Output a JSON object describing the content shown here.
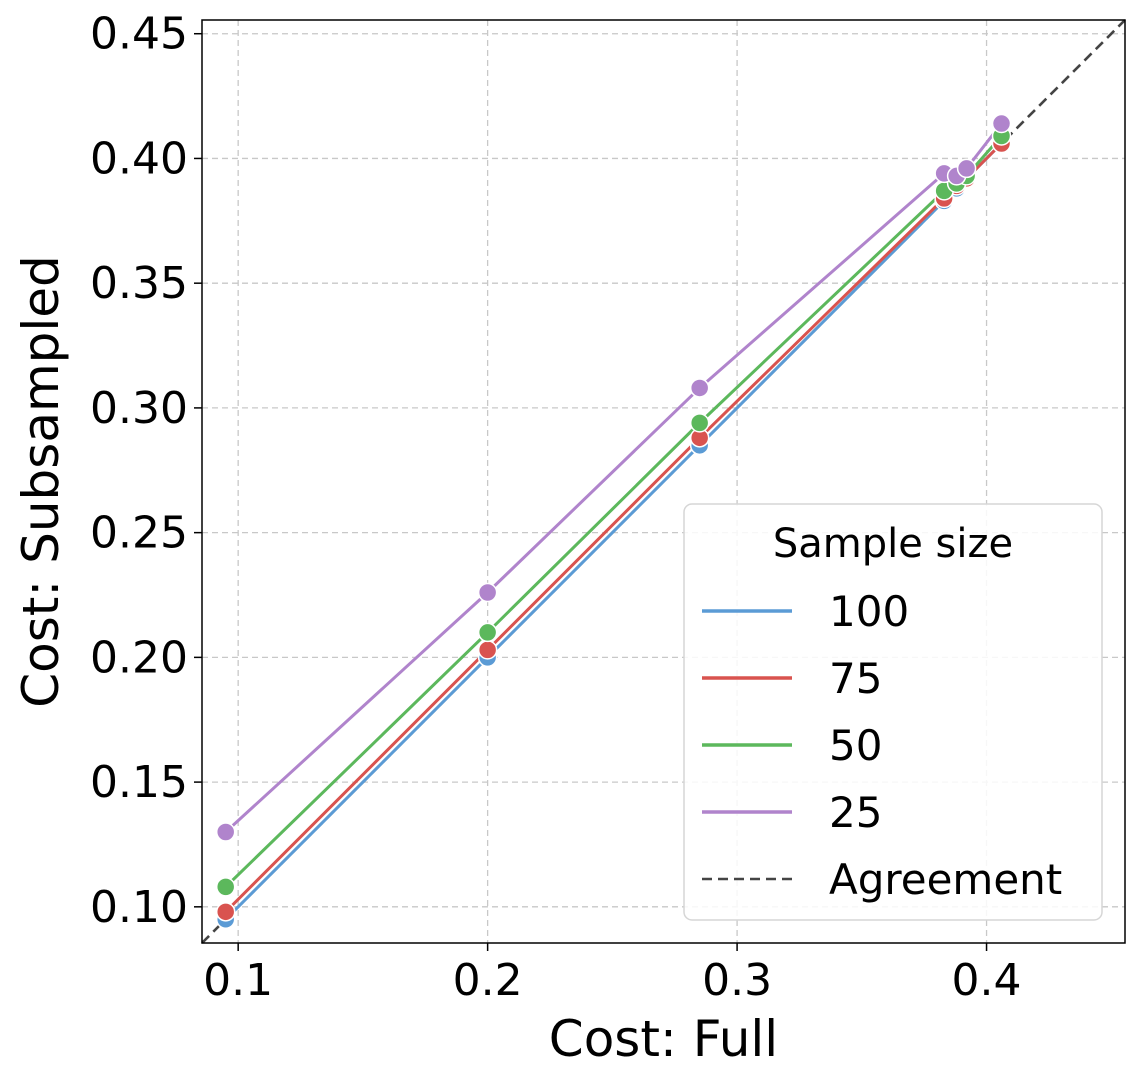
{
  "chart_data": {
    "type": "line",
    "title": "",
    "xlabel": "Cost: Full",
    "ylabel": "Cost: Subsampled",
    "xlim": [
      0.0855,
      0.4555
    ],
    "ylim": [
      0.0855,
      0.4555
    ],
    "xticks": [
      0.1,
      0.2,
      0.3,
      0.4
    ],
    "xtick_labels": [
      "0.1",
      "0.2",
      "0.3",
      "0.4"
    ],
    "yticks": [
      0.1,
      0.15,
      0.2,
      0.25,
      0.3,
      0.35,
      0.4,
      0.45
    ],
    "ytick_labels": [
      "0.10",
      "0.15",
      "0.20",
      "0.25",
      "0.30",
      "0.35",
      "0.40",
      "0.45"
    ],
    "grid": true,
    "legend": {
      "title": "Sample size",
      "position": "lower right"
    },
    "x": [
      0.095,
      0.2,
      0.285,
      0.383,
      0.388,
      0.392,
      0.406
    ],
    "series": [
      {
        "name": "100",
        "color": "#5b9bd5",
        "values": [
          0.095,
          0.2,
          0.285,
          0.383,
          0.388,
          0.392,
          0.406
        ]
      },
      {
        "name": "75",
        "color": "#d9534f",
        "values": [
          0.098,
          0.203,
          0.288,
          0.384,
          0.389,
          0.392,
          0.406
        ]
      },
      {
        "name": "50",
        "color": "#5cb85c",
        "values": [
          0.108,
          0.21,
          0.294,
          0.387,
          0.39,
          0.393,
          0.409
        ]
      },
      {
        "name": "25",
        "color": "#b084cc",
        "values": [
          0.13,
          0.226,
          0.308,
          0.394,
          0.393,
          0.396,
          0.414
        ]
      }
    ],
    "reference_line": {
      "name": "Agreement",
      "color": "#444444",
      "style": "dashed",
      "slope": 1,
      "intercept": 0
    }
  }
}
